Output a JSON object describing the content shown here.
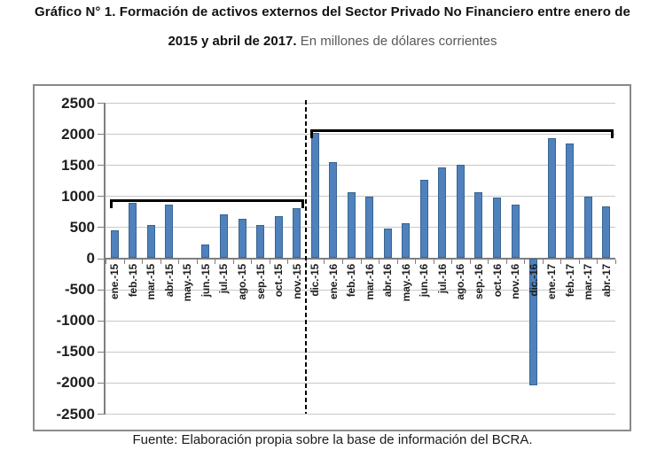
{
  "title": {
    "line1": "Gráfico N° 1. Formación de activos externos del Sector Privado No Financiero entre enero de",
    "line2_bold": "2015 y abril de 2017.",
    "line2_regular": "En millones de dólares corrientes"
  },
  "footer": {
    "text": "Fuente: Elaboración propia sobre la base de información del BCRA."
  },
  "colors": {
    "bar_fill": "#4f81bd",
    "bar_border": "#3a648f",
    "gridline": "#c8c8c8",
    "axis": "#7f7f7f",
    "box_border": "#8a8a8a",
    "bracket": "#000000",
    "dashed_line": "#000000",
    "title_secondary": "#595959"
  },
  "chart_data": {
    "type": "bar",
    "title": "Formación de activos externos del Sector Privado No Financiero",
    "subtitle": "En millones de dólares corrientes",
    "xlabel": "",
    "ylabel": "",
    "ylim": [
      -2500,
      2500
    ],
    "yticks": [
      2500,
      2000,
      1500,
      1000,
      500,
      0,
      -500,
      -1000,
      -1500,
      -2000,
      -2500
    ],
    "grid": true,
    "legend": "none",
    "categories": [
      "ene.-15",
      "feb.-15",
      "mar.-15",
      "abr.-15",
      "may.-15",
      "jun.-15",
      "jul.-15",
      "ago.-15",
      "sep.-15",
      "oct.-15",
      "nov.-15",
      "dic.-15",
      "ene.-16",
      "feb.-16",
      "mar.-16",
      "abr.-16",
      "may.-16",
      "jun.-16",
      "jul.-16",
      "ago.-16",
      "sep.-16",
      "oct.-16",
      "nov.-16",
      "dic.-16",
      "ene.-17",
      "feb.-17",
      "mar.-17",
      "abr.-17"
    ],
    "values": [
      445,
      890,
      540,
      860,
      0,
      220,
      700,
      630,
      535,
      670,
      810,
      2020,
      1550,
      1060,
      990,
      480,
      560,
      1265,
      1465,
      1500,
      1060,
      980,
      860,
      -2040,
      1930,
      1850,
      985,
      835
    ],
    "annotations": {
      "dashed_line_between_indices": [
        10,
        11
      ],
      "brackets": [
        {
          "from_index": 0,
          "to_index": 10,
          "value": 945,
          "label": "ene.-15 a nov.-15"
        },
        {
          "from_index": 11,
          "to_index": 27,
          "value": 2075,
          "label": "dic.-15 a abr.-17"
        }
      ]
    }
  }
}
